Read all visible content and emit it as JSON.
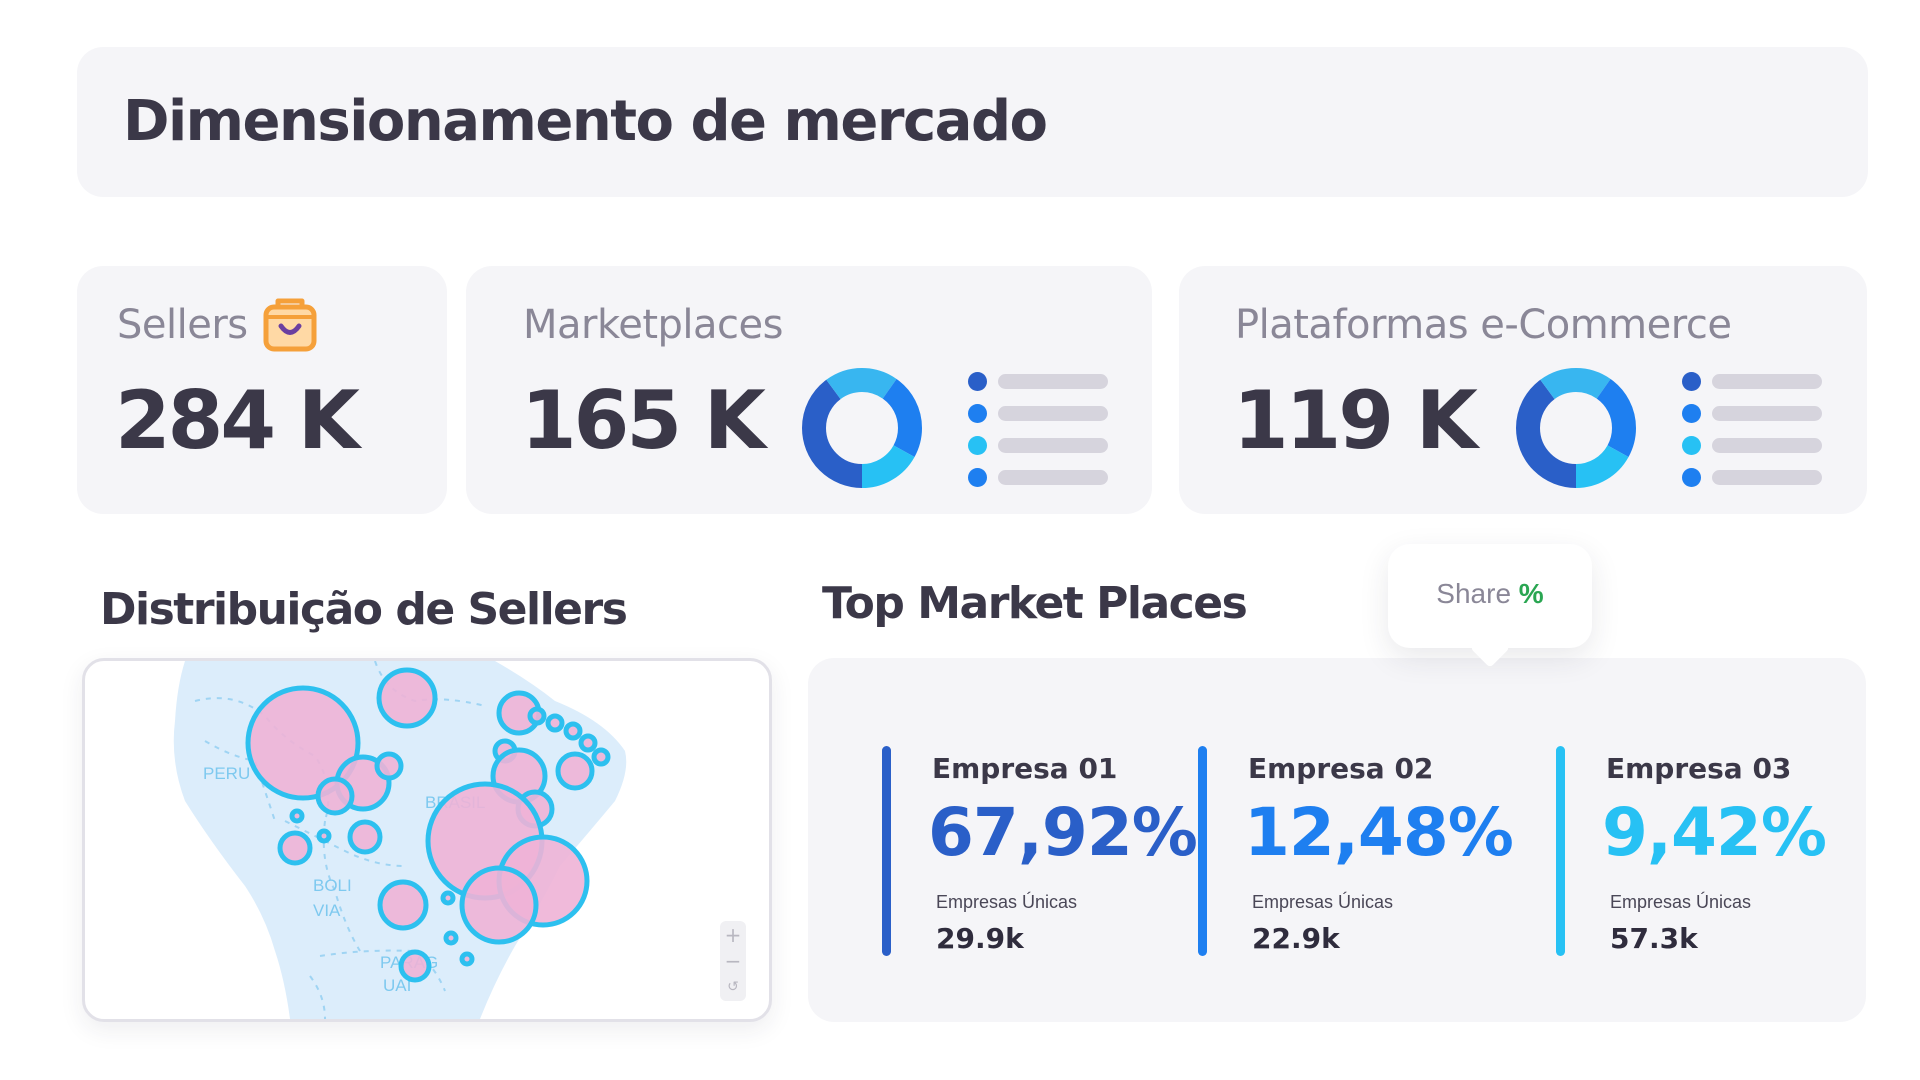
{
  "header": {
    "title": "Dimensionamento de mercado"
  },
  "kpis": {
    "sellers": {
      "label": "Sellers",
      "value": "284 K",
      "icon": "shopping-bag-icon"
    },
    "marketplaces": {
      "label": "Marketplaces",
      "value": "165 K"
    },
    "platforms": {
      "label": "Plataformas e-Commerce",
      "value": "119 K"
    }
  },
  "map": {
    "title": "Distribuição de Sellers",
    "labels": {
      "peru": "PERU",
      "brasil": "BRASIL",
      "bolivia_1": "BOLI",
      "bolivia_2": "VIA",
      "paraguai_1": "PARAG",
      "paraguai_2": "UAI"
    },
    "zoom": {
      "in": "+",
      "out": "−",
      "reset": "↺"
    }
  },
  "top": {
    "title": "Top Market Places",
    "tooltip": {
      "label": "Share",
      "symbol": "%"
    },
    "companies": [
      {
        "name": "Empresa 01",
        "share": "67,92%",
        "sub": "Empresas Únicas",
        "count": "29.9k",
        "color": "#2a5fc8"
      },
      {
        "name": "Empresa 02",
        "share": "12,48%",
        "sub": "Empresas Únicas",
        "count": "22.9k",
        "color": "#1e7ff0"
      },
      {
        "name": "Empresa 03",
        "share": "9,42%",
        "sub": "Empresas Únicas",
        "count": "57.3k",
        "color": "#27c1f4"
      }
    ]
  },
  "colors": {
    "dark_blue": "#2a5fc8",
    "blue": "#1e7ff0",
    "cyan": "#27c1f4",
    "light_blue": "#38b6f0",
    "bubble_fill": "#eeb2d6",
    "bubble_stroke": "#2dc0ef",
    "map_fill": "#dcedfb",
    "accent_orange": "#f5a03a",
    "accent_purple": "#6b3fa0"
  }
}
